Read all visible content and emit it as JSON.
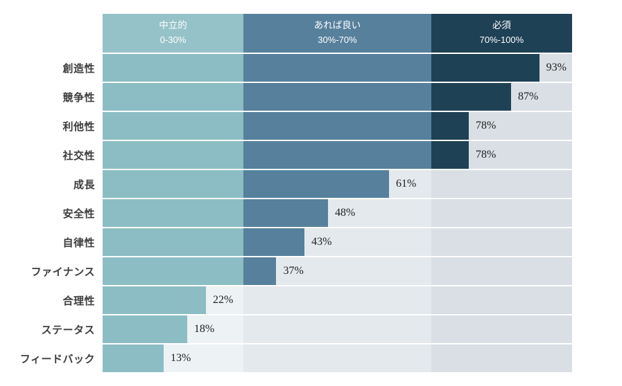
{
  "page": {
    "background": "#ffffff"
  },
  "chart_data": {
    "type": "bar",
    "orientation": "horizontal",
    "title": "",
    "xlabel": "",
    "ylabel": "",
    "xlim": [
      0,
      100
    ],
    "unit": "%",
    "grid": false,
    "legend_position": "top",
    "zones": [
      {
        "label": "中立的",
        "range": "0-30%",
        "start": 0,
        "end": 30,
        "header_color": "#95c2c8",
        "bar_color": "#8cbdc4",
        "track_color": "#edf2f4"
      },
      {
        "label": "あれば良い",
        "range": "30%-70%",
        "start": 30,
        "end": 70,
        "header_color": "#57809c",
        "bar_color": "#57809c",
        "track_color": "#e3e9ed"
      },
      {
        "label": "必須",
        "range": "70%-100%",
        "start": 70,
        "end": 100,
        "header_color": "#1f4156",
        "bar_color": "#1f4156",
        "track_color": "#d9dfe4"
      }
    ],
    "categories": [
      "創造性",
      "競争性",
      "利他性",
      "社交性",
      "成長",
      "安全性",
      "自律性",
      "ファイナンス",
      "合理性",
      "ステータス",
      "フィードバック"
    ],
    "values": [
      93,
      87,
      78,
      78,
      61,
      48,
      43,
      37,
      22,
      18,
      13
    ],
    "value_labels": [
      "93%",
      "87%",
      "78%",
      "78%",
      "61%",
      "48%",
      "43%",
      "37%",
      "22%",
      "18%",
      "13%"
    ],
    "value_label_color": "#1e1e1e",
    "category_label_color": "#3d3d3d"
  }
}
